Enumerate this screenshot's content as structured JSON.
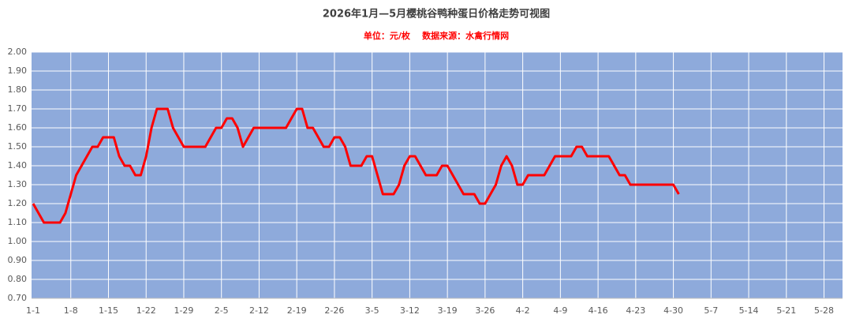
{
  "chart_data": {
    "type": "line",
    "title": "2026年1月—5月樱桃谷鸭种蛋日价格走势可视图",
    "subtitle": "单位：元/枚    数据来源：水禽行情网",
    "categories": [
      "1-1",
      null,
      null,
      null,
      null,
      null,
      null,
      "1-8",
      null,
      null,
      null,
      null,
      null,
      null,
      "1-15",
      null,
      null,
      null,
      null,
      null,
      null,
      "1-22",
      null,
      null,
      null,
      null,
      null,
      null,
      "1-29",
      null,
      null,
      null,
      null,
      null,
      null,
      "2-5",
      null,
      null,
      null,
      null,
      null,
      null,
      "2-12",
      null,
      null,
      null,
      null,
      null,
      null,
      "2-19",
      null,
      null,
      null,
      null,
      null,
      null,
      "2-26",
      null,
      null,
      null,
      null,
      null,
      null,
      "3-5",
      null,
      null,
      null,
      null,
      null,
      null,
      "3-12",
      null,
      null,
      null,
      null,
      null,
      null,
      "3-19",
      null,
      null,
      null,
      null,
      null,
      null,
      "3-26",
      null,
      null,
      null,
      null,
      null,
      null,
      "4-2",
      null,
      null,
      null,
      null,
      null,
      null,
      "4-9",
      null,
      null,
      null,
      null,
      null,
      null,
      "4-16",
      null,
      null,
      null,
      null,
      null,
      null,
      "4-23",
      null,
      null,
      null,
      null,
      null,
      null,
      "4-30",
      null,
      null,
      null,
      null,
      null,
      null,
      "5-7",
      null,
      null,
      null,
      null,
      null,
      null,
      "5-14",
      null,
      null,
      null,
      null,
      null,
      null,
      "5-21",
      null,
      null,
      null,
      null,
      null,
      null,
      "5-28",
      null,
      null,
      null
    ],
    "values": [
      1.2,
      1.15,
      1.1,
      1.1,
      1.1,
      1.1,
      1.15,
      1.25,
      1.35,
      1.4,
      1.45,
      1.5,
      1.5,
      1.55,
      1.55,
      1.55,
      1.45,
      1.4,
      1.4,
      1.35,
      1.35,
      1.45,
      1.6,
      1.7,
      1.7,
      1.7,
      1.6,
      1.55,
      1.5,
      1.5,
      1.5,
      1.5,
      1.5,
      1.55,
      1.6,
      1.6,
      1.65,
      1.65,
      1.6,
      1.5,
      1.55,
      1.6,
      1.6,
      1.6,
      1.6,
      1.6,
      1.6,
      1.6,
      1.65,
      1.7,
      1.7,
      1.6,
      1.6,
      1.55,
      1.5,
      1.5,
      1.55,
      1.55,
      1.5,
      1.4,
      1.4,
      1.4,
      1.45,
      1.45,
      1.35,
      1.25,
      1.25,
      1.25,
      1.3,
      1.4,
      1.45,
      1.45,
      1.4,
      1.35,
      1.35,
      1.35,
      1.4,
      1.4,
      1.35,
      1.3,
      1.25,
      1.25,
      1.25,
      1.2,
      1.2,
      1.25,
      1.3,
      1.4,
      1.45,
      1.4,
      1.3,
      1.3,
      1.35,
      1.35,
      1.35,
      1.35,
      1.4,
      1.45,
      1.45,
      1.45,
      1.45,
      1.5,
      1.5,
      1.45,
      1.45,
      1.45,
      1.45,
      1.45,
      1.4,
      1.35,
      1.35,
      1.3,
      1.3,
      1.3,
      1.3,
      1.3,
      1.3,
      1.3,
      1.3,
      1.3,
      1.25,
      null,
      null,
      null,
      null,
      null,
      null,
      null,
      null,
      null,
      null,
      null,
      null,
      null,
      null,
      null,
      null,
      null,
      null,
      null,
      null,
      null,
      null,
      null,
      null,
      null,
      null,
      null,
      null,
      null,
      null
    ],
    "color": "#ff0000",
    "background": "#8eaadb",
    "ylim": [
      0.7,
      2.0
    ],
    "yticks": [
      {
        "value": 0.7,
        "label": "0.70"
      },
      {
        "value": 0.8,
        "label": "0.80"
      },
      {
        "value": 0.9,
        "label": "0.90"
      },
      {
        "value": 1.0,
        "label": "1.00"
      },
      {
        "value": 1.1,
        "label": "1.10"
      },
      {
        "value": 1.2,
        "label": "1.20"
      },
      {
        "value": 1.3,
        "label": "1.30"
      },
      {
        "value": 1.4,
        "label": "1.40"
      },
      {
        "value": 1.5,
        "label": "1.50"
      },
      {
        "value": 1.6,
        "label": "1.60"
      },
      {
        "value": 1.7,
        "label": "1.70"
      },
      {
        "value": 1.8,
        "label": "1.80"
      },
      {
        "value": 1.9,
        "label": "1.90"
      },
      {
        "value": 2.0,
        "label": "2.00"
      }
    ],
    "grid": true
  }
}
